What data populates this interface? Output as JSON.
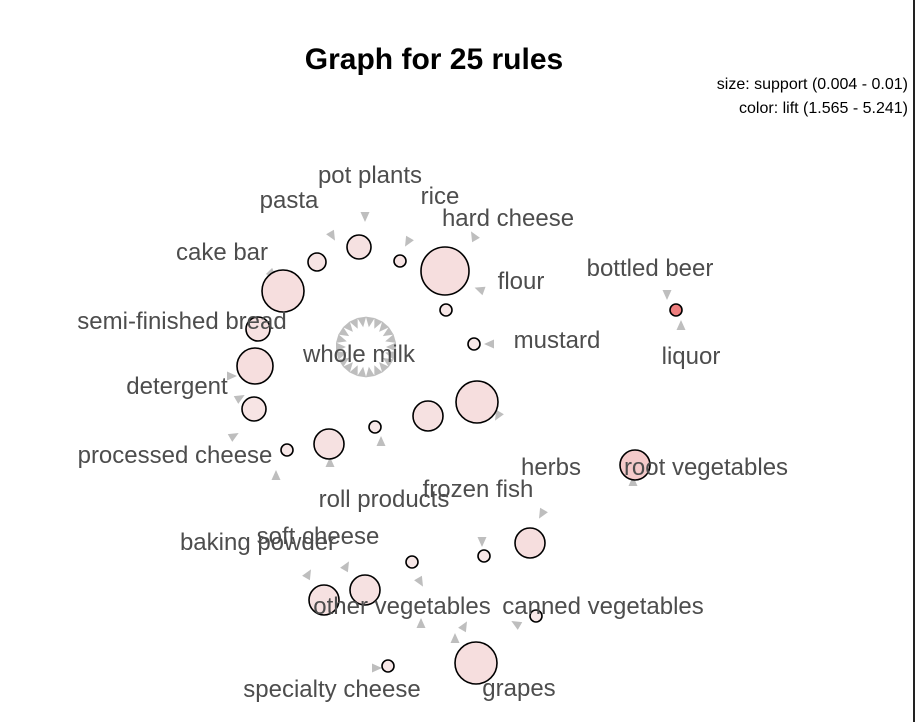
{
  "chart_data": {
    "type": "network",
    "title": "Graph for 25 rules",
    "legend": {
      "size": "size: support (0.004 - 0.01)",
      "color": "color: lift (1.565 - 5.241)"
    },
    "items": [
      "pot plants",
      "rice",
      "pasta",
      "hard cheese",
      "cake bar",
      "flour",
      "bottled beer",
      "semi-finished bread",
      "mustard",
      "whole milk",
      "liquor",
      "detergent",
      "processed cheese",
      "herbs",
      "root vegetables",
      "frozen fish",
      "roll products",
      "soft cheese",
      "baking powder",
      "other vegetables",
      "canned vegetables",
      "specialty cheese",
      "grapes"
    ],
    "support_range": [
      0.004,
      0.01
    ],
    "lift_range": [
      1.565,
      5.241
    ],
    "rule_nodes": [
      {
        "support": 0.006,
        "lift": 1.8
      },
      {
        "support": 0.004,
        "lift": 1.7
      },
      {
        "support": 0.005,
        "lift": 1.7
      },
      {
        "support": 0.01,
        "lift": 1.9
      },
      {
        "support": 0.009,
        "lift": 1.9
      },
      {
        "support": 0.004,
        "lift": 1.6
      },
      {
        "support": 0.004,
        "lift": 5.241
      },
      {
        "support": 0.006,
        "lift": 1.8
      },
      {
        "support": 0.004,
        "lift": 1.6
      },
      {
        "support": 0.008,
        "lift": 1.9
      },
      {
        "support": 0.006,
        "lift": 1.7
      },
      {
        "support": 0.009,
        "lift": 1.9
      },
      {
        "support": 0.007,
        "lift": 1.8
      },
      {
        "support": 0.004,
        "lift": 1.6
      },
      {
        "support": 0.004,
        "lift": 1.6
      },
      {
        "support": 0.007,
        "lift": 1.8
      },
      {
        "support": 0.007,
        "lift": 2.6
      },
      {
        "support": 0.007,
        "lift": 1.9
      },
      {
        "support": 0.004,
        "lift": 1.6
      },
      {
        "support": 0.004,
        "lift": 1.6
      },
      {
        "support": 0.007,
        "lift": 1.8
      },
      {
        "support": 0.007,
        "lift": 1.8
      },
      {
        "support": 0.004,
        "lift": 1.6
      },
      {
        "support": 0.004,
        "lift": 1.6
      },
      {
        "support": 0.009,
        "lift": 1.9
      }
    ]
  }
}
